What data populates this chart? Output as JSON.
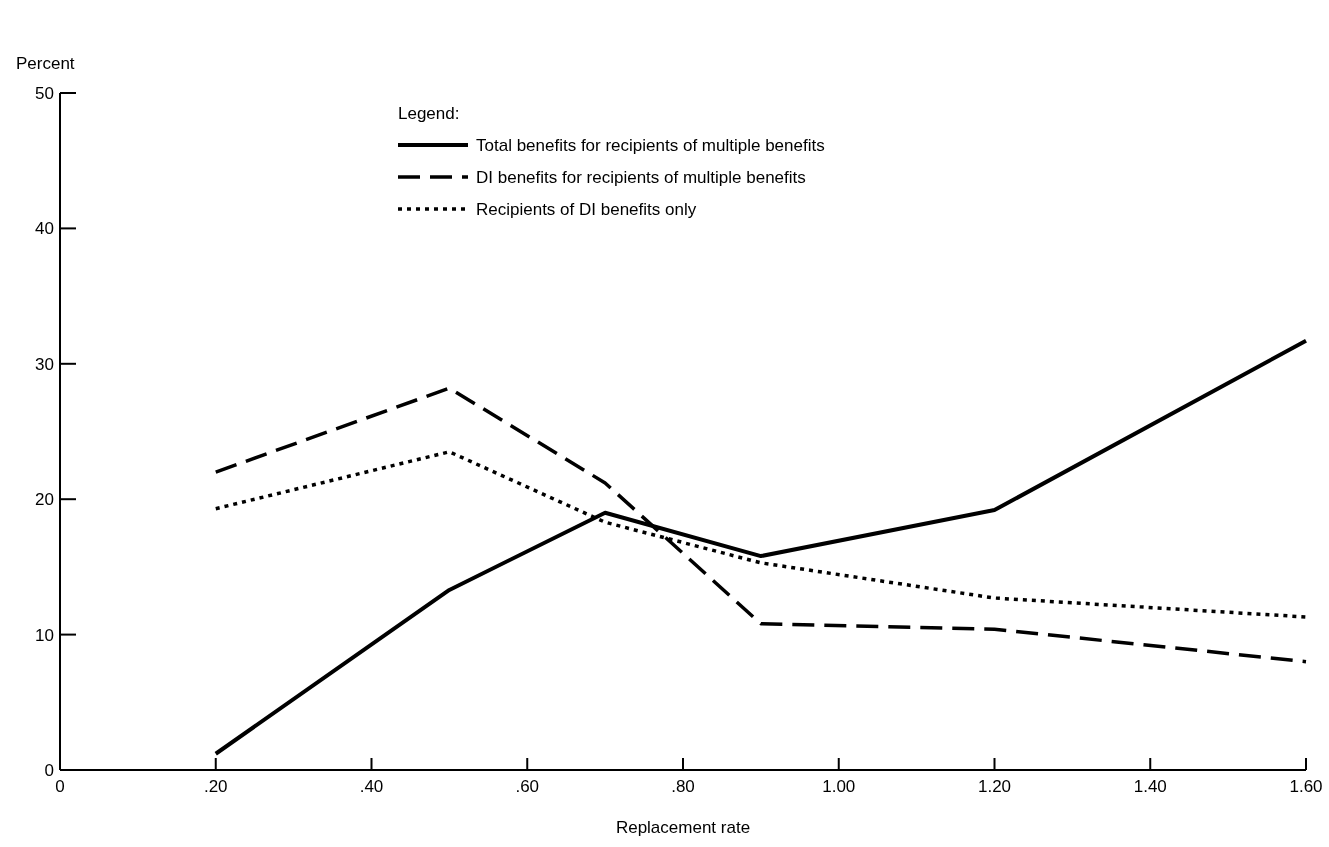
{
  "chart_data": {
    "type": "line",
    "xlabel": "Replacement rate",
    "ylabel": "Percent",
    "legend_title": "Legend:",
    "legend": "top",
    "grid": false,
    "marker": "none",
    "x": [
      0.2,
      0.5,
      0.7,
      0.9,
      1.2,
      1.6
    ],
    "xlim": [
      0,
      1.6
    ],
    "xticks": [
      0,
      {
        "value": 0.2,
        "label": ".20"
      },
      {
        "value": 0.4,
        "label": ".40"
      },
      {
        "value": 0.6,
        "label": ".60"
      },
      {
        "value": 0.8,
        "label": ".80"
      },
      {
        "value": 1,
        "label": "1.00"
      },
      {
        "value": 1.2,
        "label": "1.20"
      },
      {
        "value": 1.4,
        "label": "1.40"
      },
      {
        "value": 1.6,
        "label": "1.60"
      }
    ],
    "ylim": [
      0,
      50
    ],
    "yticks": [
      0,
      10,
      20,
      30,
      40,
      50
    ],
    "series": [
      {
        "name": "Total benefits for recipients of multiple benefits",
        "color": "#000000",
        "line_style": "solid",
        "values": [
          1.2,
          13.3,
          19,
          15.8,
          19.2,
          31.7
        ]
      },
      {
        "name": "DI benefits for recipients of multiple benefits",
        "color": "#000000",
        "line_style": "dashed",
        "values": [
          22,
          28.2,
          21.2,
          10.8,
          10.4,
          8
        ]
      },
      {
        "name": "Recipients of DI benefits only",
        "color": "#000000",
        "line_style": "dotted",
        "values": [
          19.3,
          23.5,
          18.3,
          15.3,
          12.7,
          11.3
        ]
      }
    ]
  }
}
